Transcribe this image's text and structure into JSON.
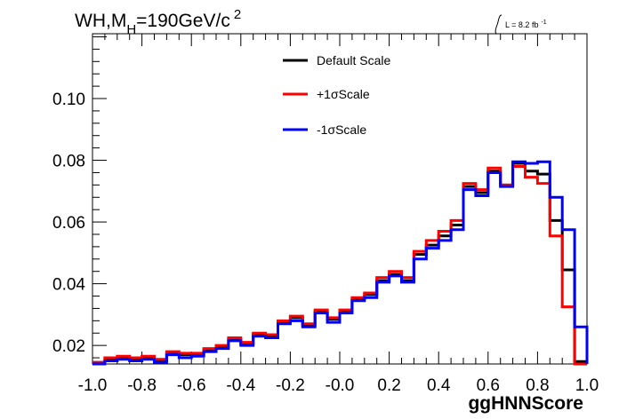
{
  "chart_data": {
    "type": "line",
    "title": "WH,M",
    "title_sub": "H",
    "title_rest": "=190GeV/c",
    "title_sup": "2",
    "lumi_label": "L = 8.2 fb",
    "lumi_sup": "-1",
    "xlabel": "ggHNNScore",
    "xlim": [
      -1.0,
      1.0
    ],
    "ylim": [
      0.014,
      0.121
    ],
    "x_ticks": [
      "-1.0",
      "-0.8",
      "-0.6",
      "-0.4",
      "-0.2",
      "-0.0",
      "0.2",
      "0.4",
      "0.6",
      "0.8",
      "1.0"
    ],
    "x_tick_values": [
      -1.0,
      -0.8,
      -0.6,
      -0.4,
      -0.2,
      0.0,
      0.2,
      0.4,
      0.6,
      0.8,
      1.0
    ],
    "y_ticks": [
      "0.02",
      "0.04",
      "0.06",
      "0.08",
      "0.10"
    ],
    "y_tick_values": [
      0.02,
      0.04,
      0.06,
      0.08,
      0.1
    ],
    "legend_position": "top-center",
    "bin_edges": [
      -1.0,
      -0.95,
      -0.9,
      -0.85,
      -0.8,
      -0.75,
      -0.7,
      -0.65,
      -0.6,
      -0.55,
      -0.5,
      -0.45,
      -0.4,
      -0.35,
      -0.3,
      -0.25,
      -0.2,
      -0.15,
      -0.1,
      -0.05,
      0.0,
      0.05,
      0.1,
      0.15,
      0.2,
      0.25,
      0.3,
      0.35,
      0.4,
      0.45,
      0.5,
      0.55,
      0.6,
      0.65,
      0.7,
      0.75,
      0.8,
      0.85,
      0.9,
      0.95,
      1.0
    ],
    "series": [
      {
        "name": "Default Scale",
        "color": "#000000",
        "values": [
          0.0145,
          0.0155,
          0.016,
          0.0155,
          0.016,
          0.015,
          0.0175,
          0.017,
          0.017,
          0.0185,
          0.0195,
          0.022,
          0.0205,
          0.0235,
          0.023,
          0.0275,
          0.029,
          0.0265,
          0.031,
          0.0285,
          0.031,
          0.035,
          0.0365,
          0.041,
          0.043,
          0.041,
          0.0495,
          0.0525,
          0.0555,
          0.059,
          0.0715,
          0.0695,
          0.0765,
          0.072,
          0.079,
          0.0765,
          0.0755,
          0.0605,
          0.0445,
          0.0148
        ]
      },
      {
        "name": "+1σScale",
        "color": "#ff0000",
        "values": [
          0.0145,
          0.016,
          0.0165,
          0.016,
          0.0165,
          0.0155,
          0.018,
          0.0175,
          0.0175,
          0.019,
          0.02,
          0.0225,
          0.021,
          0.024,
          0.0235,
          0.028,
          0.0295,
          0.027,
          0.0315,
          0.029,
          0.0315,
          0.0355,
          0.037,
          0.042,
          0.044,
          0.042,
          0.0505,
          0.054,
          0.057,
          0.0605,
          0.0725,
          0.0705,
          0.0775,
          0.072,
          0.078,
          0.0745,
          0.0725,
          0.0555,
          0.0325,
          0.0135
        ]
      },
      {
        "name": "-1σScale",
        "color": "#0000ff",
        "values": [
          0.014,
          0.015,
          0.0155,
          0.015,
          0.0155,
          0.0145,
          0.017,
          0.016,
          0.0165,
          0.018,
          0.019,
          0.0215,
          0.02,
          0.023,
          0.0225,
          0.027,
          0.028,
          0.026,
          0.0305,
          0.0275,
          0.0305,
          0.0345,
          0.0355,
          0.0405,
          0.0425,
          0.0405,
          0.048,
          0.0515,
          0.054,
          0.0575,
          0.0705,
          0.0685,
          0.076,
          0.0715,
          0.0795,
          0.079,
          0.0795,
          0.068,
          0.0575,
          0.026
        ]
      }
    ]
  }
}
